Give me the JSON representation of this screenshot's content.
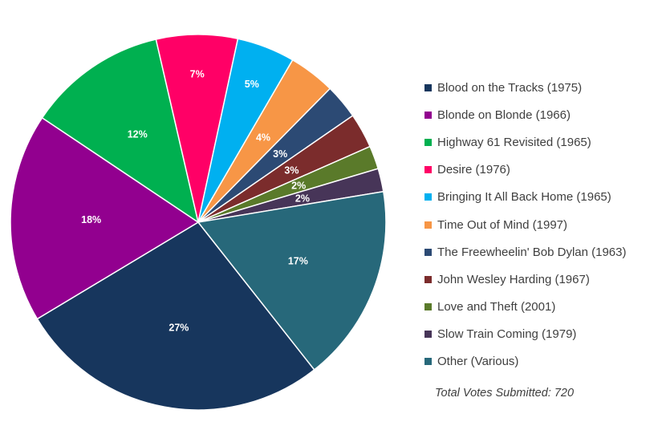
{
  "chart_data": {
    "type": "pie",
    "categories": [
      "Blood on the Tracks (1975)",
      "Blonde on Blonde (1966)",
      "Highway 61 Revisited (1965)",
      "Desire (1976)",
      "Bringing It All Back Home (1965)",
      "Time Out of Mind (1997)",
      "The Freewheelin' Bob Dylan (1963)",
      "John Wesley Harding (1967)",
      "Love and Theft (2001)",
      "Slow Train Coming (1979)",
      "Other (Various)"
    ],
    "values": [
      27,
      18,
      12,
      7,
      5,
      4,
      3,
      3,
      2,
      2,
      17
    ],
    "labels": [
      "27%",
      "18%",
      "12%",
      "7%",
      "5%",
      "4%",
      "3%",
      "3%",
      "2%",
      "2%",
      "17%"
    ],
    "colors": [
      "#17365d",
      "#92008f",
      "#00b050",
      "#ff0066",
      "#00b0f0",
      "#f79646",
      "#2c4a74",
      "#7b2c2c",
      "#5a7a2a",
      "#473558",
      "#27687a"
    ],
    "legend_position": "right",
    "annotation": "Total Votes Submitted: 720"
  }
}
